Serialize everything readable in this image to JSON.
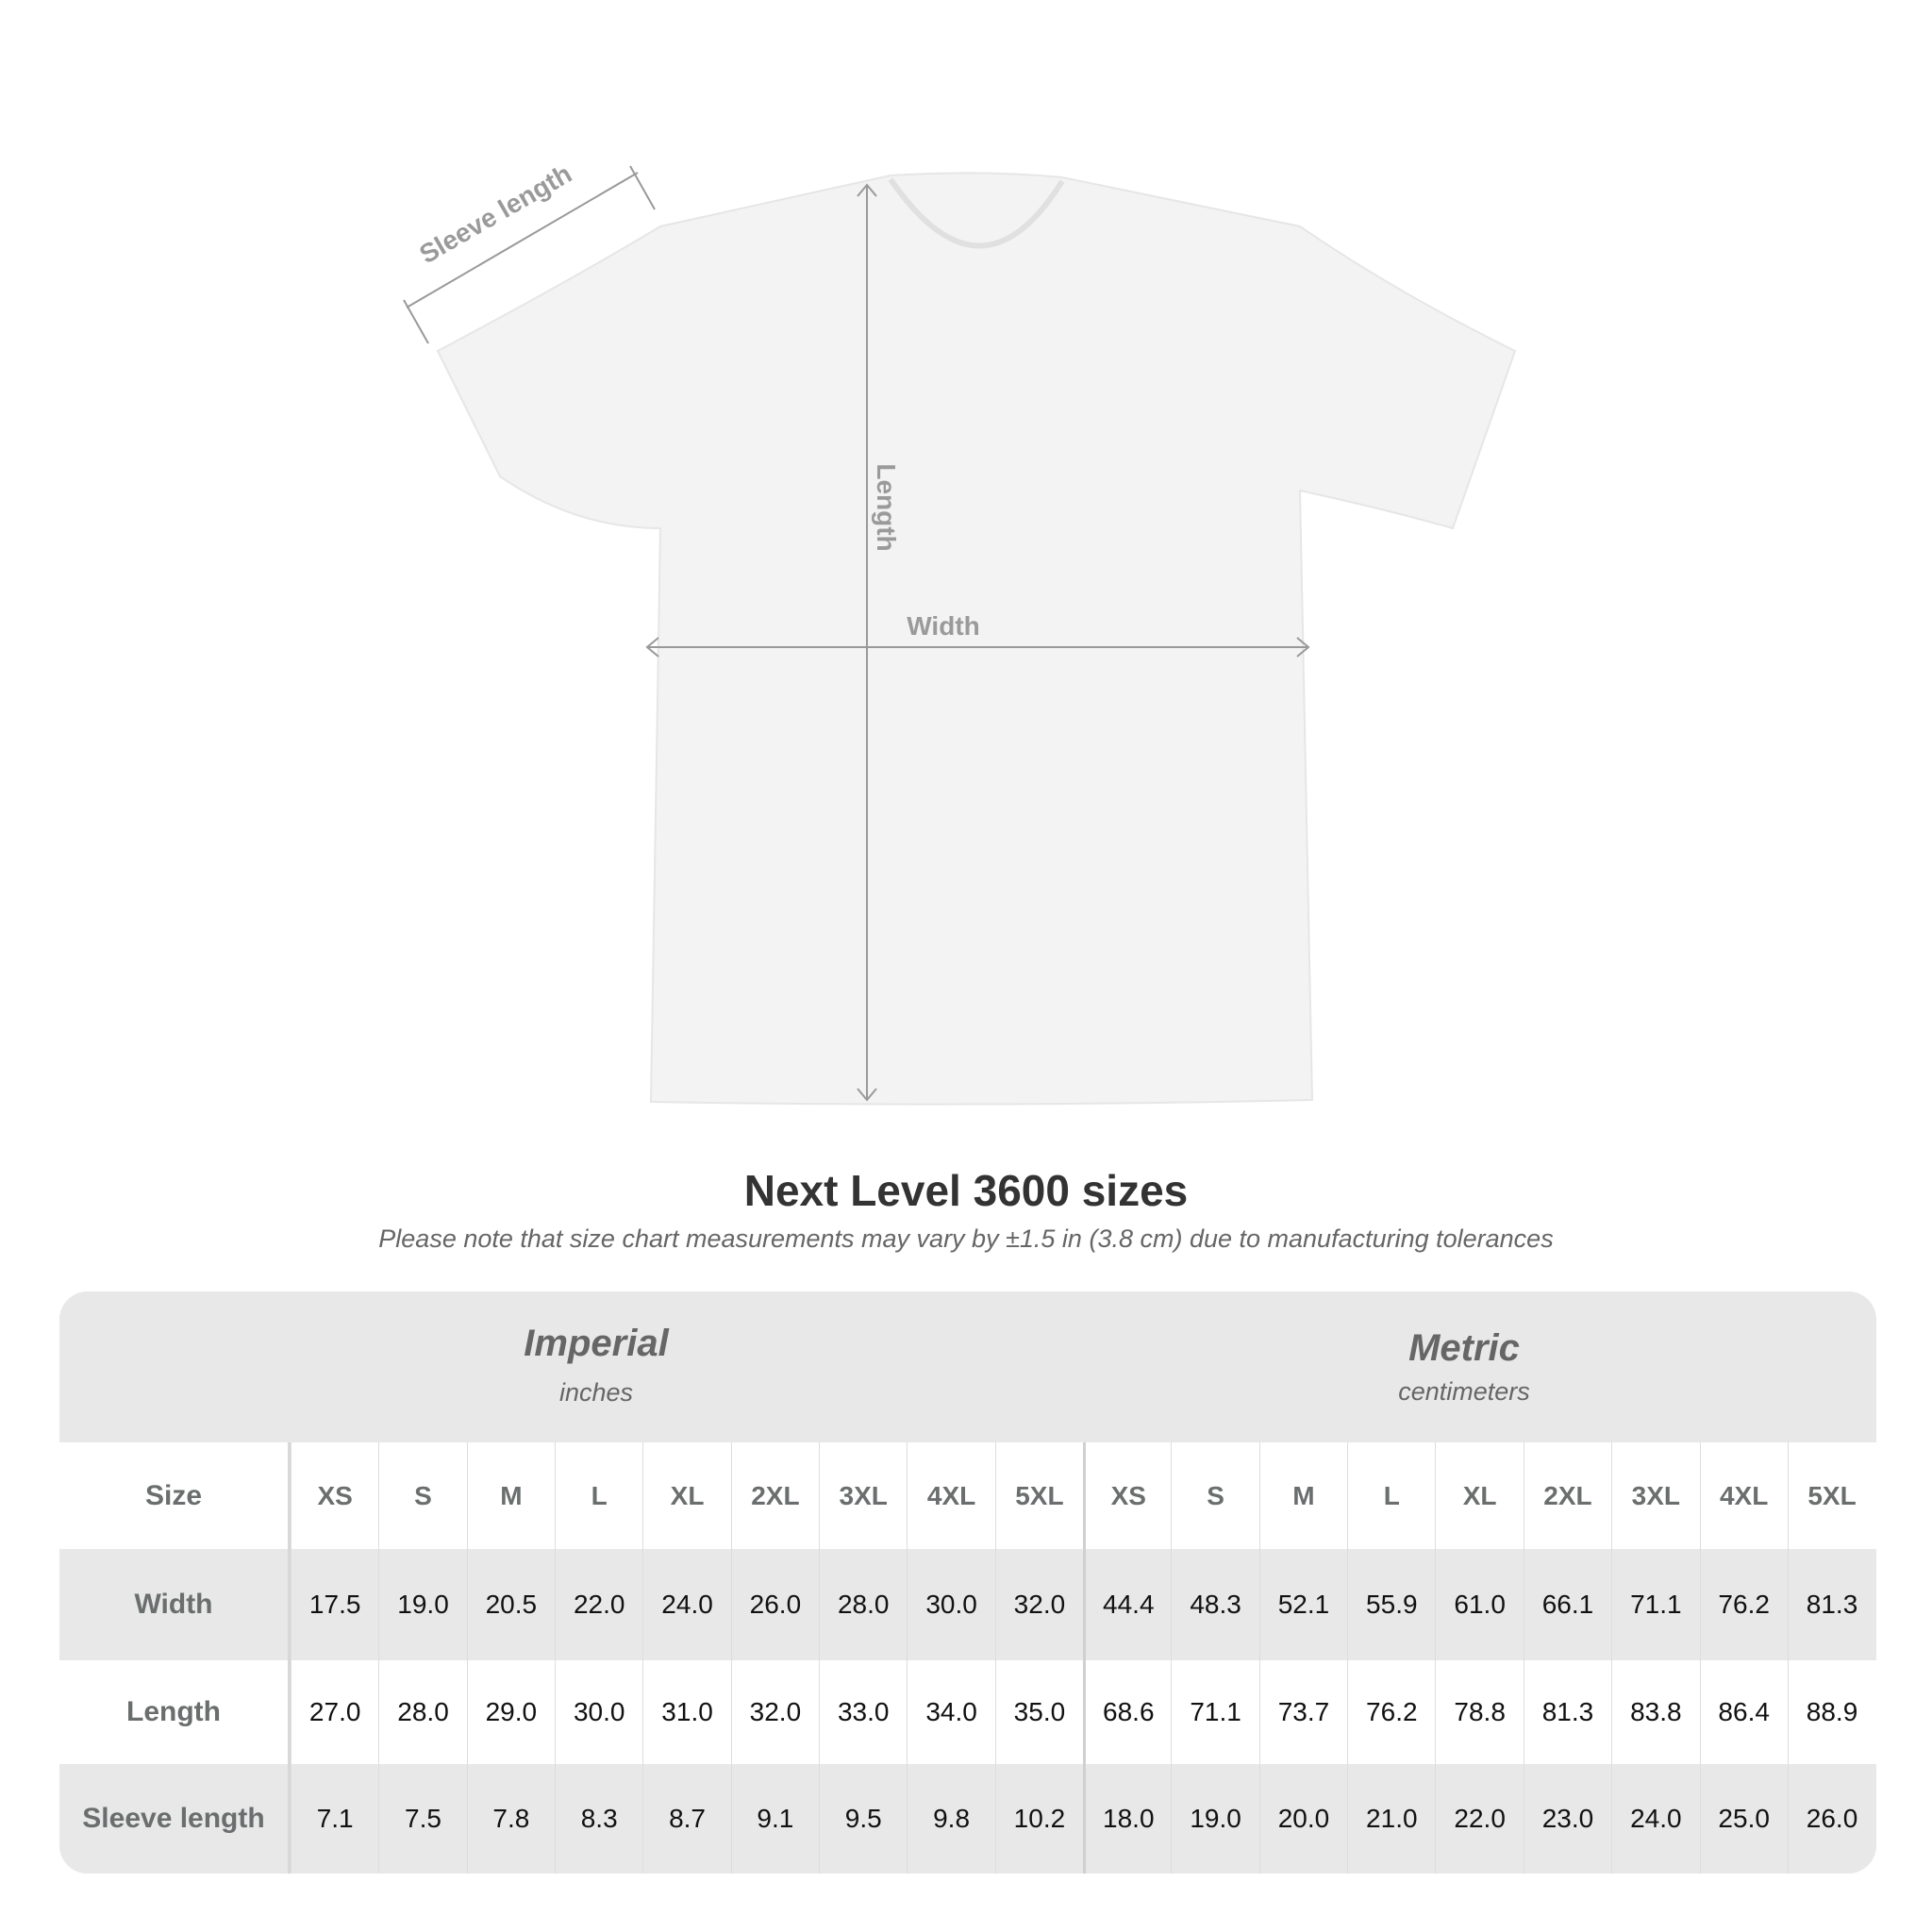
{
  "diagram": {
    "labels": {
      "sleeve": "Sleeve length",
      "length": "Length",
      "width": "Width"
    }
  },
  "title": "Next Level 3600 sizes",
  "note": "Please note that size chart measurements may vary by ±1.5 in (3.8 cm) due to manufacturing tolerances",
  "table": {
    "imperial": {
      "title": "Imperial",
      "unit": "inches"
    },
    "metric": {
      "title": "Metric",
      "unit": "centimeters"
    },
    "size_label": "Size",
    "sizes": [
      "XS",
      "S",
      "M",
      "L",
      "XL",
      "2XL",
      "3XL",
      "4XL",
      "5XL"
    ],
    "rows": [
      {
        "label": "Width",
        "imperial": [
          "17.5",
          "19.0",
          "20.5",
          "22.0",
          "24.0",
          "26.0",
          "28.0",
          "30.0",
          "32.0"
        ],
        "metric": [
          "44.4",
          "48.3",
          "52.1",
          "55.9",
          "61.0",
          "66.1",
          "71.1",
          "76.2",
          "81.3"
        ]
      },
      {
        "label": "Length",
        "imperial": [
          "27.0",
          "28.0",
          "29.0",
          "30.0",
          "31.0",
          "32.0",
          "33.0",
          "34.0",
          "35.0"
        ],
        "metric": [
          "68.6",
          "71.1",
          "73.7",
          "76.2",
          "78.8",
          "81.3",
          "83.8",
          "86.4",
          "88.9"
        ]
      },
      {
        "label": "Sleeve length",
        "imperial": [
          "7.1",
          "7.5",
          "7.8",
          "8.3",
          "8.7",
          "9.1",
          "9.5",
          "9.8",
          "10.2"
        ],
        "metric": [
          "18.0",
          "19.0",
          "20.0",
          "21.0",
          "22.0",
          "23.0",
          "24.0",
          "25.0",
          "26.0"
        ]
      }
    ]
  }
}
